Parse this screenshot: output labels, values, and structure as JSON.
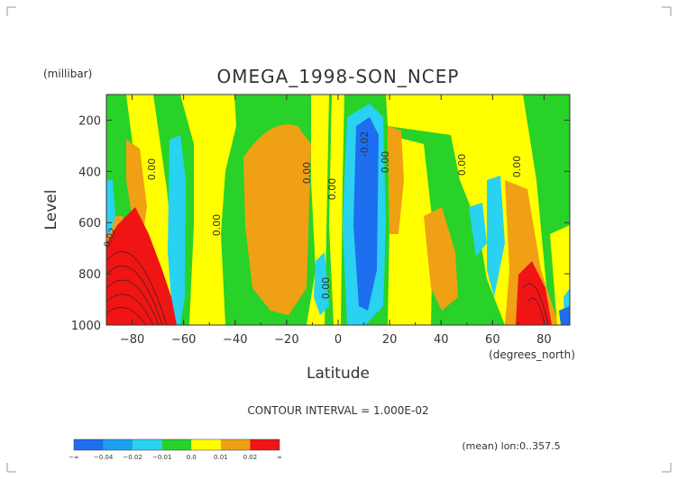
{
  "chart_data": {
    "type": "heatmap",
    "title": "OMEGA_1998-SON_NCEP",
    "units_label": "(millibar)",
    "ylabel": "Level",
    "xlabel": "Latitude",
    "xunits": "(degrees_north)",
    "x_ticks": [
      -80,
      -60,
      -40,
      -20,
      0,
      20,
      40,
      60,
      80
    ],
    "y_ticks": [
      200,
      400,
      600,
      800,
      1000
    ],
    "xlim": [
      -90,
      90
    ],
    "ylim": [
      1000,
      100
    ],
    "contour_interval_text": "CONTOUR INTERVAL = 1.000E-02",
    "mean_text": "(mean) lon:0..357.5",
    "contour_labels": [
      "0.00",
      "0.00",
      "0.00",
      "0.00",
      "0.00",
      "0.00",
      "0.00",
      "0.00",
      "0.00",
      "-0.02",
      "0.02"
    ],
    "colorbar": {
      "labels": [
        "-∞",
        "-0.04",
        "-0.02",
        "-0.01",
        "0.0",
        "0.01",
        "0.02",
        "∞"
      ],
      "colors": [
        "#1e6ef0",
        "#1ea0f0",
        "#28d2f0",
        "#28d228",
        "#ffff00",
        "#f0a014",
        "#f01414"
      ]
    },
    "regions": [
      {
        "level": "green",
        "lat_range": [
          -90,
          90
        ],
        "lev_range": [
          100,
          1000
        ]
      },
      {
        "level": "yellow",
        "lat_range": [
          -75,
          -10
        ],
        "lev_range": [
          100,
          1000
        ]
      },
      {
        "level": "orange",
        "lat_range": [
          -35,
          -15
        ],
        "lev_range": [
          250,
          950
        ]
      },
      {
        "level": "cyan",
        "lat_range": [
          -72,
          -60
        ],
        "lev_range": [
          350,
          1000
        ]
      },
      {
        "level": "red",
        "lat_range": [
          -90,
          -70
        ],
        "lev_range": [
          550,
          1000
        ]
      },
      {
        "level": "blue",
        "lat_range": [
          3,
          17
        ],
        "lev_range": [
          150,
          950
        ]
      },
      {
        "level": "red",
        "lat_range": [
          65,
          80
        ],
        "lev_range": [
          750,
          1000
        ]
      }
    ]
  }
}
